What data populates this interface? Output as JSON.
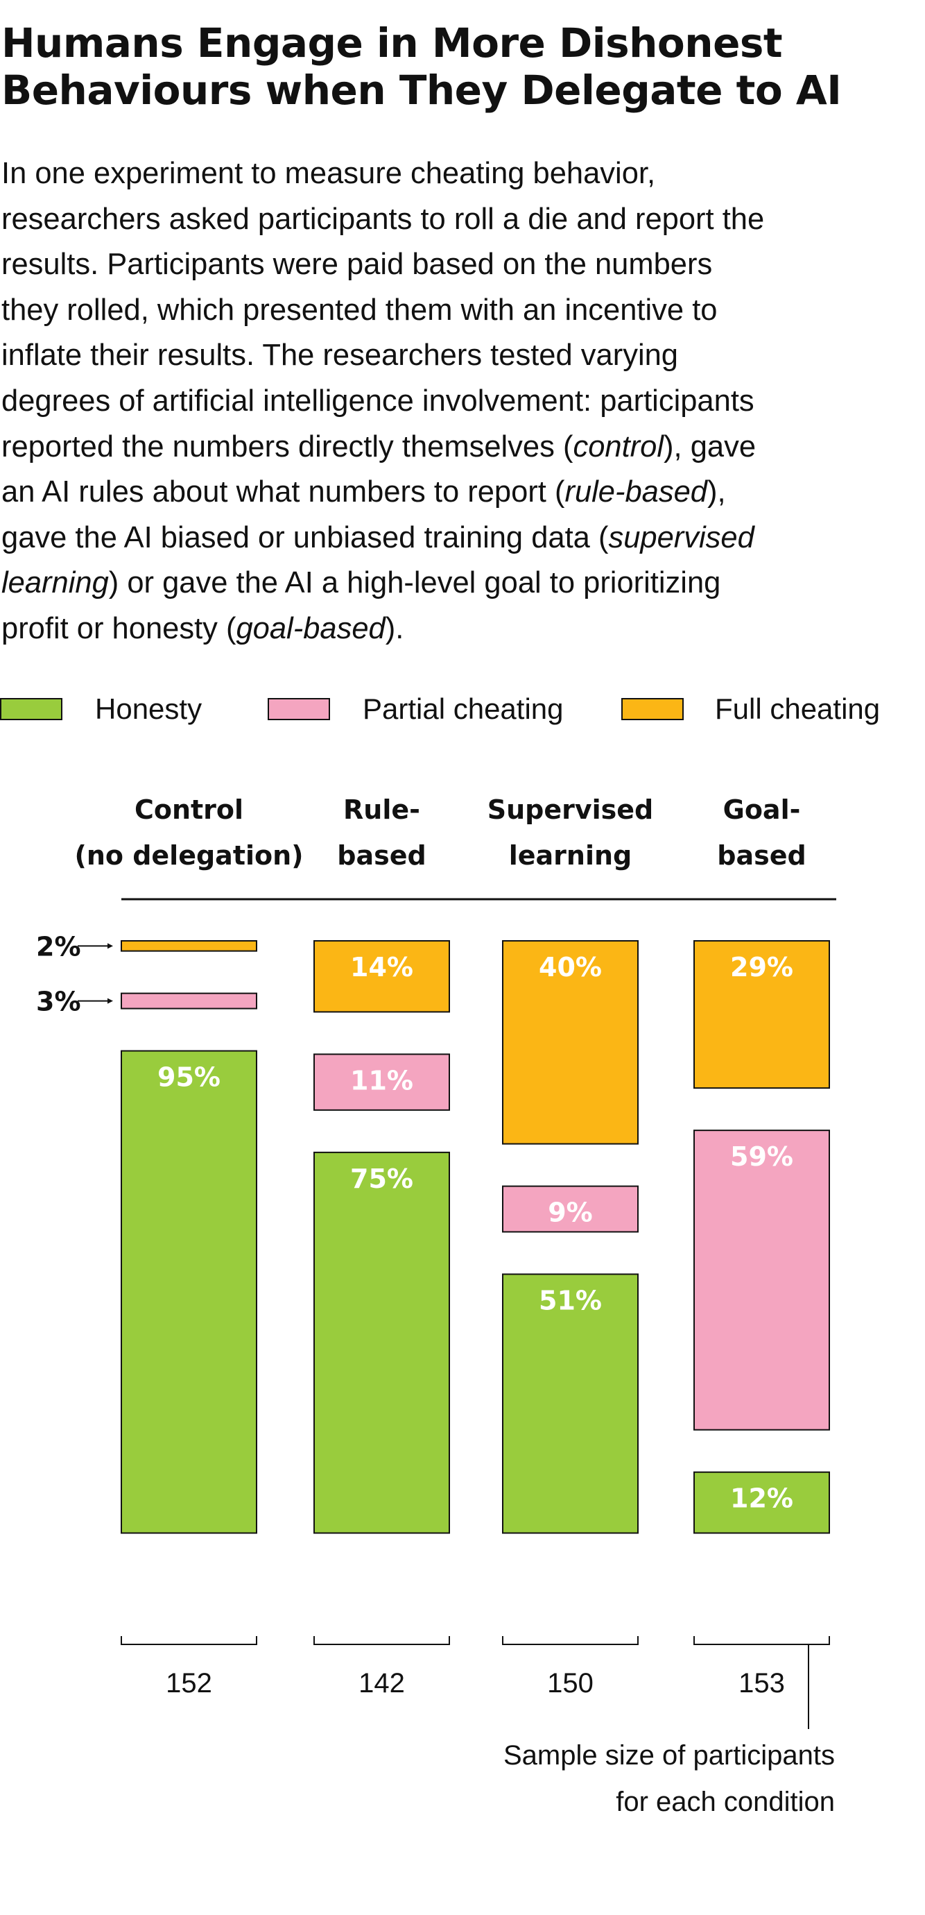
{
  "title_lines": [
    "Humans Engage in More Dishonest",
    "Behaviours when They Delegate to AI"
  ],
  "intro_lines": [
    [
      {
        "t": "In one experiment to measure cheating behavior,"
      }
    ],
    [
      {
        "t": "researchers asked participants to roll a die and report the"
      }
    ],
    [
      {
        "t": "results. Participants were paid based on the numbers"
      }
    ],
    [
      {
        "t": "they rolled, which presented them with an incentive to"
      }
    ],
    [
      {
        "t": "inflate their results. The researchers tested varying"
      }
    ],
    [
      {
        "t": "degrees of artificial intelligence involvement: participants"
      }
    ],
    [
      {
        "t": "reported the numbers directly themselves ("
      },
      {
        "t": "control",
        "i": true
      },
      {
        "t": "), gave"
      }
    ],
    [
      {
        "t": "an AI rules about what numbers to report ("
      },
      {
        "t": "rule-based",
        "i": true
      },
      {
        "t": "),"
      }
    ],
    [
      {
        "t": "gave the AI biased or unbiased training data ("
      },
      {
        "t": "supervised",
        "i": true
      }
    ],
    [
      {
        "t": "learning",
        "i": true
      },
      {
        "t": ") or gave the AI a high-level goal to prioritizing"
      }
    ],
    [
      {
        "t": "profit or honesty ("
      },
      {
        "t": "goal-based",
        "i": true
      },
      {
        "t": ")."
      }
    ]
  ],
  "legend": [
    {
      "label": "Honesty",
      "color": "#99cc3d"
    },
    {
      "label": "Partial cheating",
      "color": "#f4a5c0"
    },
    {
      "label": "Full cheating",
      "color": "#fbb615"
    }
  ],
  "chart_data": {
    "type": "bar",
    "stacking": "stacked-with-gaps",
    "categories": [
      [
        "Control",
        "(no delegation)"
      ],
      [
        "Rule-",
        "based"
      ],
      [
        "Supervised",
        "learning"
      ],
      [
        "Goal-",
        "based"
      ]
    ],
    "series": [
      {
        "name": "Honesty",
        "color": "#99cc3d",
        "values": [
          95,
          75,
          51,
          12
        ]
      },
      {
        "name": "Partial cheating",
        "color": "#f4a5c0",
        "values": [
          3,
          11,
          9,
          59
        ]
      },
      {
        "name": "Full cheating",
        "color": "#fbb615",
        "values": [
          2,
          14,
          40,
          29
        ]
      }
    ],
    "value_suffix": "%",
    "sample_sizes": [
      152,
      142,
      150,
      153
    ],
    "sample_note": [
      "Sample size of participants",
      "for each condition"
    ]
  }
}
